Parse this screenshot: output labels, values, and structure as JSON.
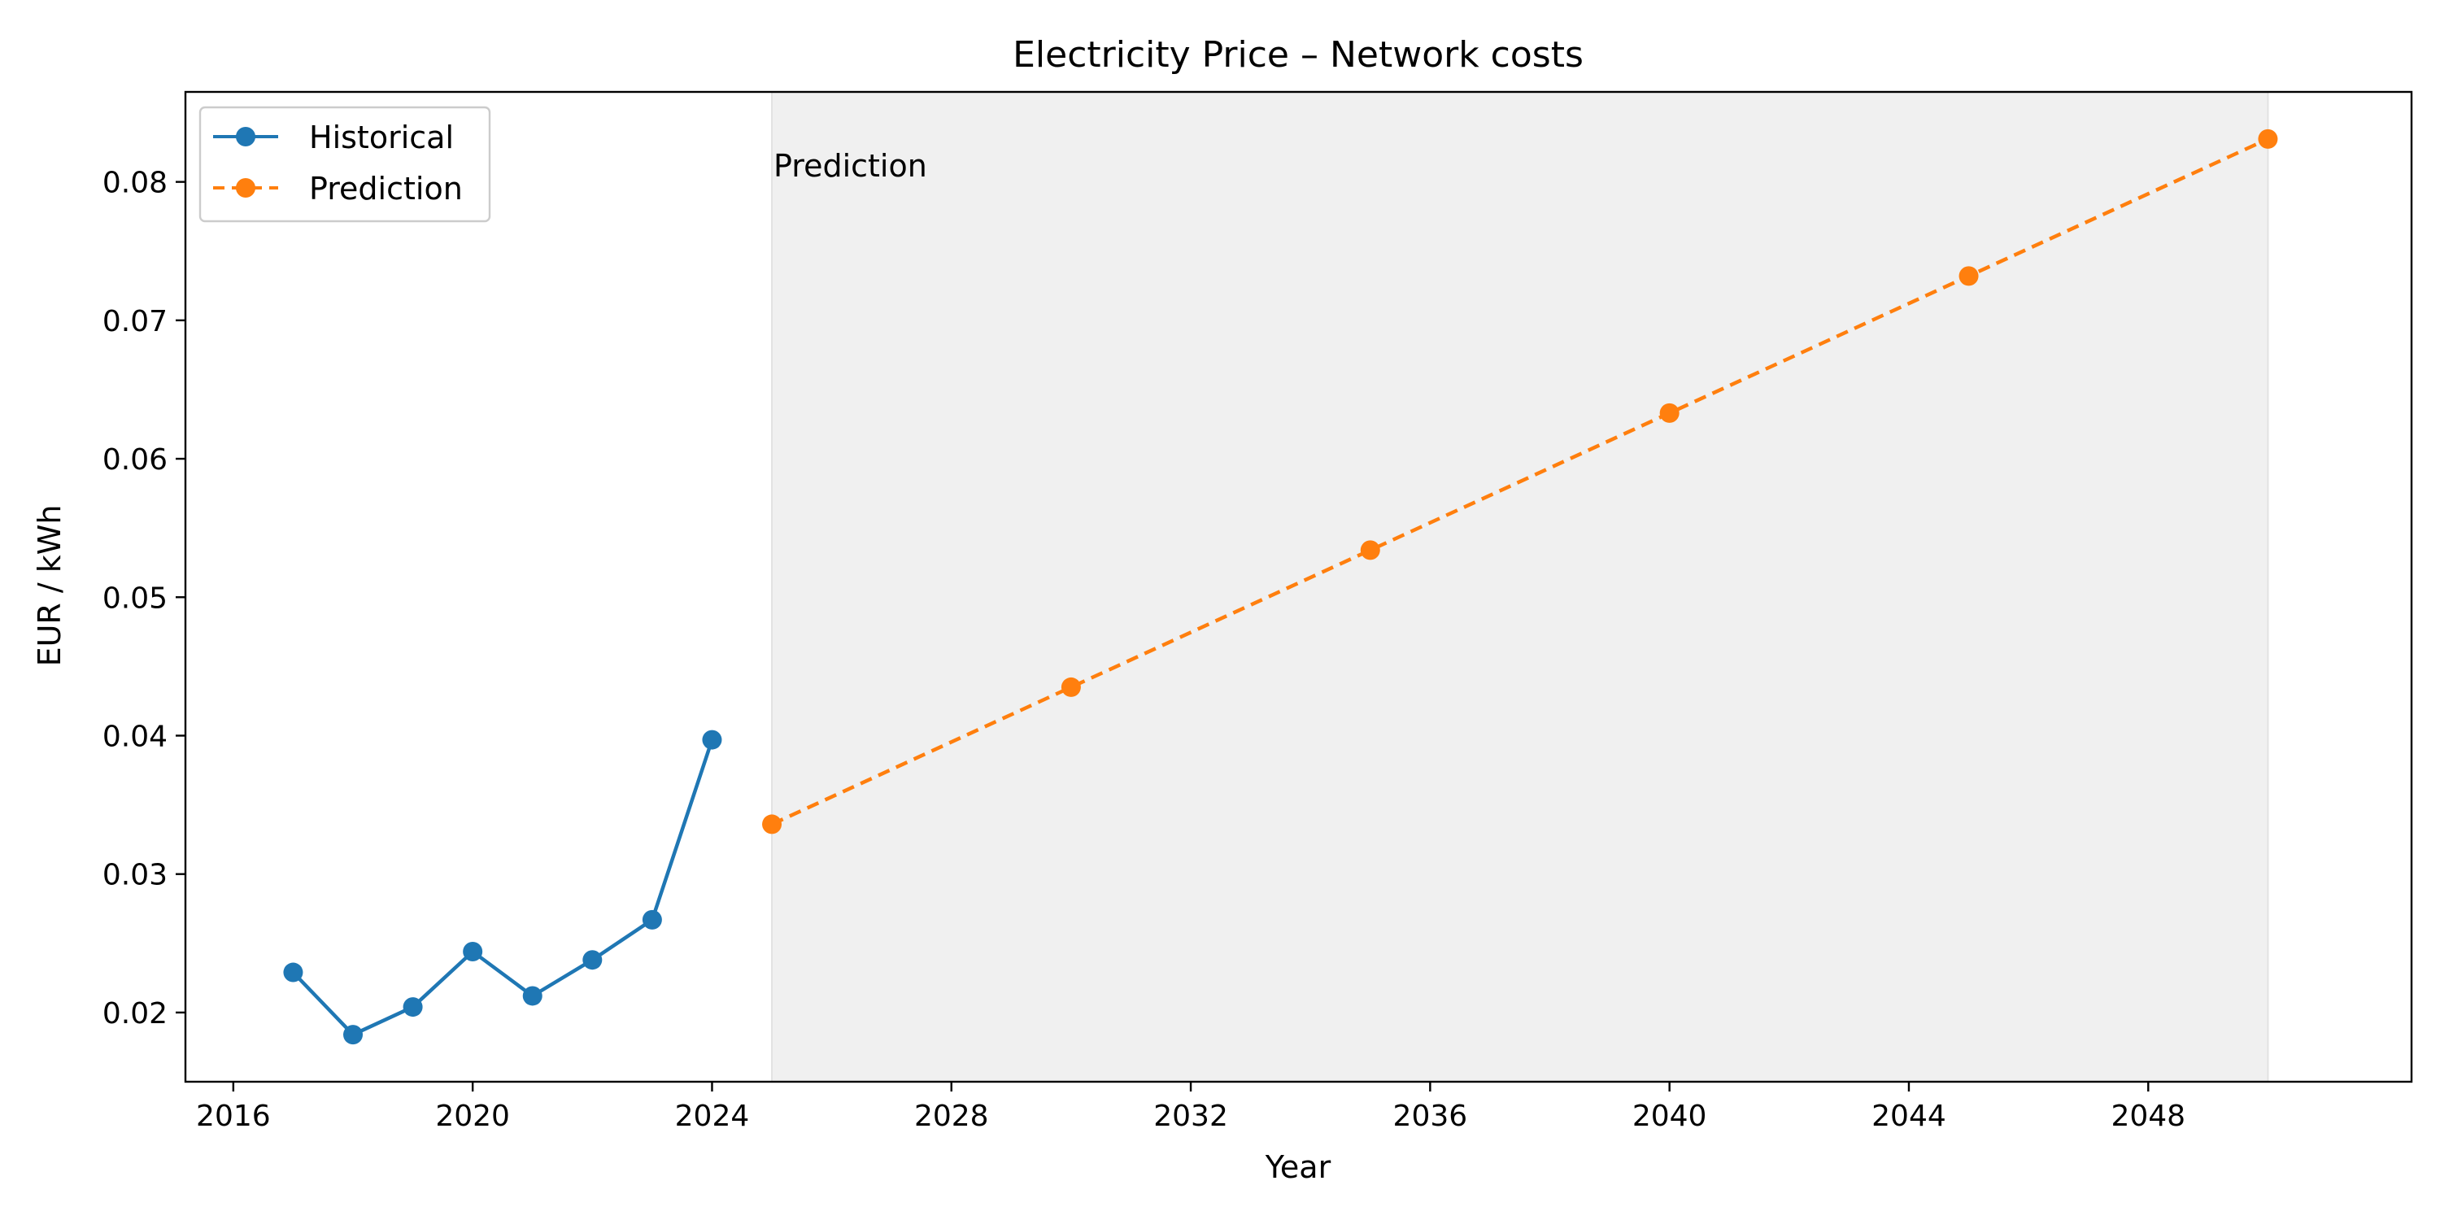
{
  "chart_data": {
    "type": "line",
    "title": "Electricity Price – Network costs",
    "xlabel": "Year",
    "ylabel": "EUR / kWh",
    "xlim": [
      2015.2,
      2052.4
    ],
    "ylim": [
      0.015,
      0.0865
    ],
    "xticks": [
      2016,
      2020,
      2024,
      2028,
      2032,
      2036,
      2040,
      2044,
      2048
    ],
    "yticks": [
      0.02,
      0.03,
      0.04,
      0.05,
      0.06,
      0.07,
      0.08
    ],
    "grid": false,
    "legend_position": "top-left",
    "shaded_region": {
      "x_start": 2025,
      "x_end": 2050,
      "label": "Prediction",
      "color": "#f0f0f0"
    },
    "series": [
      {
        "name": "Historical",
        "style": "solid",
        "marker": "circle",
        "color": "#1f77b4",
        "x": [
          2017,
          2018,
          2019,
          2020,
          2021,
          2022,
          2023,
          2024
        ],
        "y": [
          0.0229,
          0.0184,
          0.0204,
          0.0244,
          0.0212,
          0.0238,
          0.0267,
          0.0397
        ]
      },
      {
        "name": "Prediction",
        "style": "dashed",
        "marker": "circle",
        "color": "#ff7f0e",
        "x": [
          2025,
          2030,
          2035,
          2040,
          2045,
          2050
        ],
        "y": [
          0.0336,
          0.0435,
          0.0534,
          0.0633,
          0.0732,
          0.0831
        ]
      }
    ]
  }
}
